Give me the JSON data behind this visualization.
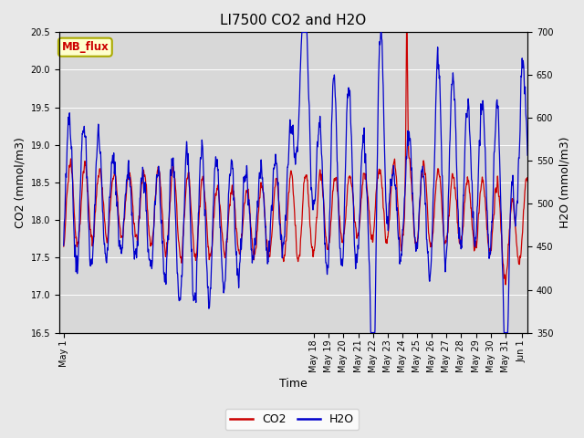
{
  "title": "LI7500 CO2 and H2O",
  "xlabel": "Time",
  "ylabel_left": "CO2 (mmol/m3)",
  "ylabel_right": "H2O (mmol/m3)",
  "ylim_left": [
    16.5,
    20.5
  ],
  "ylim_right": [
    350,
    700
  ],
  "co2_color": "#cc0000",
  "h2o_color": "#0000cc",
  "fig_bg_color": "#e8e8e8",
  "plot_bg_color": "#d8d8d8",
  "legend_labels": [
    "CO2",
    "H2O"
  ],
  "watermark_text": "MB_flux",
  "watermark_bg": "#ffffcc",
  "watermark_fg": "#cc0000",
  "watermark_border": "#aaaa00",
  "n_points": 3000,
  "x_start": 1,
  "x_end": 32.5,
  "x_ticks": [
    1,
    18,
    19,
    20,
    21,
    22,
    23,
    24,
    25,
    26,
    27,
    28,
    29,
    30,
    31,
    32.1
  ],
  "x_tick_labels": [
    "May 1",
    "May 18",
    "May 19",
    "May 20",
    "May 21",
    "May 22",
    "May 23",
    "May 24",
    "May 25",
    "May 26",
    "May 27",
    "May 28",
    "May 29",
    "May 30",
    "May 31",
    "Jun 1"
  ],
  "title_fontsize": 11,
  "tick_fontsize": 7,
  "label_fontsize": 9,
  "legend_fontsize": 9,
  "line_width": 0.9,
  "grid_color": "#c8c8c8",
  "grid_lw": 0.7
}
